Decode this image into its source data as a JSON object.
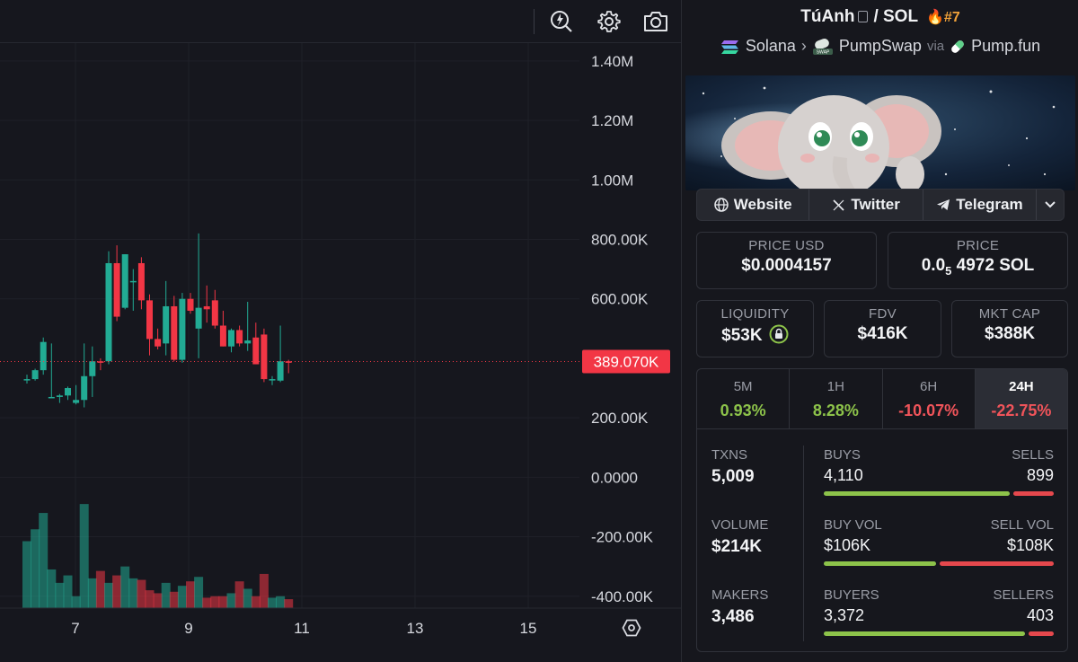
{
  "chart": {
    "y_axis_labels": [
      "1.40M",
      "1.20M",
      "1.00M",
      "800.00K",
      "600.00K",
      "200.00K",
      "0.0000",
      "-200.00K",
      "-400.00K"
    ],
    "x_axis_labels": [
      "7",
      "9",
      "11",
      "13",
      "15"
    ],
    "current_price_label": "389.070K",
    "colors": {
      "up": "#22ab94",
      "down": "#f23645",
      "background": "#16171e",
      "price_tag": "#f23645"
    }
  },
  "chart_data": {
    "type": "candlestick",
    "x_labels": [
      "7",
      "9",
      "11",
      "13",
      "15"
    ],
    "ylim": [
      -440000,
      1460000
    ],
    "candles": [
      {
        "o": 330000,
        "h": 345000,
        "l": 315000,
        "c": 330000
      },
      {
        "o": 330000,
        "h": 365000,
        "l": 325000,
        "c": 360000
      },
      {
        "o": 360000,
        "h": 470000,
        "l": 345000,
        "c": 455000
      },
      {
        "o": 270000,
        "h": 450000,
        "l": 270000,
        "c": 270000
      },
      {
        "o": 270000,
        "h": 280000,
        "l": 250000,
        "c": 275000
      },
      {
        "o": 275000,
        "h": 305000,
        "l": 260000,
        "c": 300000
      },
      {
        "o": 250000,
        "h": 310000,
        "l": 245000,
        "c": 260000
      },
      {
        "o": 260000,
        "h": 450000,
        "l": 235000,
        "c": 340000
      },
      {
        "o": 340000,
        "h": 440000,
        "l": 270000,
        "c": 390000
      },
      {
        "o": 390000,
        "h": 400000,
        "l": 360000,
        "c": 385000
      },
      {
        "o": 390000,
        "h": 760000,
        "l": 380000,
        "c": 720000
      },
      {
        "o": 720000,
        "h": 780000,
        "l": 525000,
        "c": 540000
      },
      {
        "o": 570000,
        "h": 750000,
        "l": 565000,
        "c": 750000
      },
      {
        "o": 660000,
        "h": 700000,
        "l": 560000,
        "c": 660000
      },
      {
        "o": 720000,
        "h": 740000,
        "l": 565000,
        "c": 595000
      },
      {
        "o": 595000,
        "h": 615000,
        "l": 410000,
        "c": 465000
      },
      {
        "o": 465000,
        "h": 500000,
        "l": 430000,
        "c": 440000
      },
      {
        "o": 450000,
        "h": 660000,
        "l": 410000,
        "c": 575000
      },
      {
        "o": 575000,
        "h": 610000,
        "l": 390000,
        "c": 395000
      },
      {
        "o": 395000,
        "h": 620000,
        "l": 385000,
        "c": 600000
      },
      {
        "o": 600000,
        "h": 620000,
        "l": 550000,
        "c": 560000
      },
      {
        "o": 500000,
        "h": 820000,
        "l": 400000,
        "c": 570000
      },
      {
        "o": 575000,
        "h": 645000,
        "l": 520000,
        "c": 565000
      },
      {
        "o": 595000,
        "h": 630000,
        "l": 500000,
        "c": 510000
      },
      {
        "o": 510000,
        "h": 560000,
        "l": 440000,
        "c": 440000
      },
      {
        "o": 440000,
        "h": 500000,
        "l": 420000,
        "c": 495000
      },
      {
        "o": 495000,
        "h": 510000,
        "l": 440000,
        "c": 450000
      },
      {
        "o": 450000,
        "h": 590000,
        "l": 425000,
        "c": 460000
      },
      {
        "o": 470000,
        "h": 520000,
        "l": 380000,
        "c": 380000
      },
      {
        "o": 480000,
        "h": 500000,
        "l": 320000,
        "c": 330000
      },
      {
        "o": 330000,
        "h": 340000,
        "l": 310000,
        "c": 330000
      },
      {
        "o": 325000,
        "h": 510000,
        "l": 320000,
        "c": 390000
      },
      {
        "o": 390000,
        "h": 395000,
        "l": 350000,
        "c": 385000
      }
    ],
    "volumes": [
      -215000,
      -175000,
      -120000,
      -310000,
      -355000,
      -330000,
      -400000,
      -90000,
      -340000,
      -315000,
      -355000,
      -330000,
      -300000,
      -340000,
      -345000,
      -380000,
      -390000,
      -355000,
      -385000,
      -365000,
      -350000,
      -335000,
      -405000,
      -400000,
      -400000,
      -390000,
      -350000,
      -375000,
      -400000,
      -325000,
      -405000,
      -400000,
      -410000
    ]
  },
  "info": {
    "token_name": "TúAnh",
    "quote": "SOL",
    "rank": "#7",
    "chain": "Solana",
    "dex": "PumpSwap",
    "via": "via",
    "launchpad": "Pump.fun",
    "links": {
      "website": "Website",
      "twitter": "Twitter",
      "telegram": "Telegram"
    },
    "price_usd_label": "PRICE USD",
    "price_usd": "$0.0004157",
    "price_label": "PRICE",
    "price_sol_prefix": "0.0",
    "price_sol_sub": "5",
    "price_sol_suffix": "4972 SOL",
    "liquidity_label": "LIQUIDITY",
    "liquidity": "$53K",
    "fdv_label": "FDV",
    "fdv": "$416K",
    "mcap_label": "MKT CAP",
    "mcap": "$388K",
    "changes": [
      {
        "label": "5M",
        "value": "0.93%",
        "color": "#8dc34a"
      },
      {
        "label": "1H",
        "value": "8.28%",
        "color": "#8dc34a"
      },
      {
        "label": "6H",
        "value": "-10.07%",
        "color": "#f0545a"
      },
      {
        "label": "24H",
        "value": "-22.75%",
        "color": "#f0545a"
      }
    ],
    "txns_label": "TXNS",
    "txns": "5,009",
    "buys_label": "BUYS",
    "buys": "4,110",
    "sells_label": "SELLS",
    "sells": "899",
    "buy_share": 0.82,
    "volume_label": "VOLUME",
    "volume": "$214K",
    "buy_vol_label": "BUY VOL",
    "buy_vol": "$106K",
    "sell_vol_label": "SELL VOL",
    "sell_vol": "$108K",
    "buy_vol_share": 0.495,
    "makers_label": "MAKERS",
    "makers": "3,486",
    "buyers_label": "BUYERS",
    "buyers": "3,372",
    "sellers_label": "SELLERS",
    "sellers": "403",
    "buyer_share": 0.89
  }
}
